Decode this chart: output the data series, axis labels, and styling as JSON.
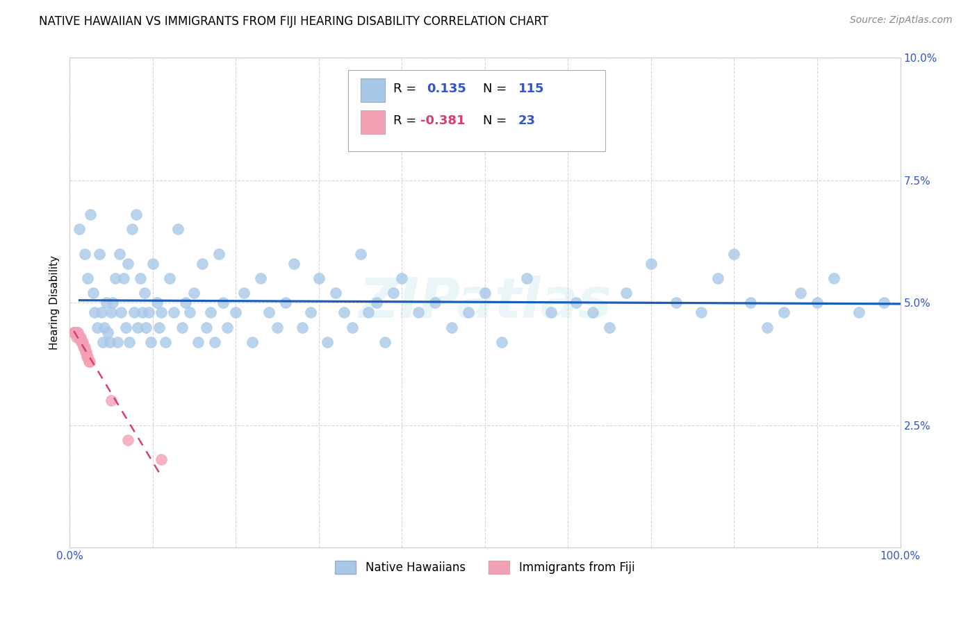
{
  "title": "NATIVE HAWAIIAN VS IMMIGRANTS FROM FIJI HEARING DISABILITY CORRELATION CHART",
  "source": "Source: ZipAtlas.com",
  "ylabel": "Hearing Disability",
  "watermark": "ZIPatlas",
  "xlim": [
    0,
    1.0
  ],
  "ylim": [
    0,
    0.1
  ],
  "native_hawaiian_color": "#a8c8e8",
  "fiji_color": "#f4a0b4",
  "trendline_nh_color": "#1a5eb8",
  "trendline_fiji_color": "#d44070",
  "legend_color": "#3355cc",
  "background_color": "#ffffff",
  "grid_color": "#cccccc",
  "title_fontsize": 12,
  "axis_label_fontsize": 11,
  "tick_fontsize": 11,
  "source_fontsize": 10,
  "native_hawaiians_x": [
    0.012,
    0.018,
    0.022,
    0.025,
    0.028,
    0.03,
    0.033,
    0.036,
    0.038,
    0.04,
    0.042,
    0.044,
    0.046,
    0.048,
    0.05,
    0.052,
    0.055,
    0.058,
    0.06,
    0.062,
    0.065,
    0.068,
    0.07,
    0.072,
    0.075,
    0.078,
    0.08,
    0.082,
    0.085,
    0.088,
    0.09,
    0.092,
    0.095,
    0.098,
    0.1,
    0.105,
    0.108,
    0.11,
    0.115,
    0.12,
    0.125,
    0.13,
    0.135,
    0.14,
    0.145,
    0.15,
    0.155,
    0.16,
    0.165,
    0.17,
    0.175,
    0.18,
    0.185,
    0.19,
    0.2,
    0.21,
    0.22,
    0.23,
    0.24,
    0.25,
    0.26,
    0.27,
    0.28,
    0.29,
    0.3,
    0.31,
    0.32,
    0.33,
    0.34,
    0.35,
    0.36,
    0.37,
    0.38,
    0.39,
    0.4,
    0.42,
    0.44,
    0.46,
    0.48,
    0.5,
    0.52,
    0.55,
    0.58,
    0.61,
    0.63,
    0.65,
    0.67,
    0.7,
    0.73,
    0.76,
    0.78,
    0.8,
    0.82,
    0.84,
    0.86,
    0.88,
    0.9,
    0.92,
    0.95,
    0.98
  ],
  "native_hawaiians_y": [
    0.065,
    0.06,
    0.055,
    0.068,
    0.052,
    0.048,
    0.045,
    0.06,
    0.048,
    0.042,
    0.045,
    0.05,
    0.044,
    0.042,
    0.048,
    0.05,
    0.055,
    0.042,
    0.06,
    0.048,
    0.055,
    0.045,
    0.058,
    0.042,
    0.065,
    0.048,
    0.068,
    0.045,
    0.055,
    0.048,
    0.052,
    0.045,
    0.048,
    0.042,
    0.058,
    0.05,
    0.045,
    0.048,
    0.042,
    0.055,
    0.048,
    0.065,
    0.045,
    0.05,
    0.048,
    0.052,
    0.042,
    0.058,
    0.045,
    0.048,
    0.042,
    0.06,
    0.05,
    0.045,
    0.048,
    0.052,
    0.042,
    0.055,
    0.048,
    0.045,
    0.05,
    0.058,
    0.045,
    0.048,
    0.055,
    0.042,
    0.052,
    0.048,
    0.045,
    0.06,
    0.048,
    0.05,
    0.042,
    0.052,
    0.055,
    0.048,
    0.05,
    0.045,
    0.048,
    0.052,
    0.042,
    0.055,
    0.048,
    0.05,
    0.048,
    0.045,
    0.052,
    0.058,
    0.05,
    0.048,
    0.055,
    0.06,
    0.05,
    0.045,
    0.048,
    0.052,
    0.05,
    0.055,
    0.048,
    0.05
  ],
  "fiji_x": [
    0.005,
    0.006,
    0.007,
    0.008,
    0.009,
    0.01,
    0.011,
    0.012,
    0.013,
    0.014,
    0.015,
    0.016,
    0.017,
    0.018,
    0.019,
    0.02,
    0.021,
    0.022,
    0.023,
    0.024,
    0.05,
    0.07,
    0.11
  ],
  "fiji_y": [
    0.044,
    0.044,
    0.044,
    0.043,
    0.044,
    0.044,
    0.043,
    0.043,
    0.043,
    0.042,
    0.042,
    0.042,
    0.041,
    0.041,
    0.04,
    0.04,
    0.039,
    0.039,
    0.038,
    0.038,
    0.03,
    0.022,
    0.018
  ]
}
